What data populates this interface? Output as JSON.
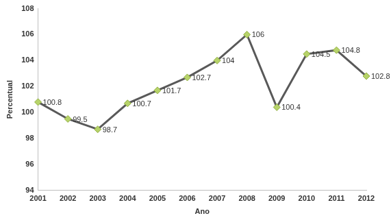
{
  "chart_data": {
    "type": "line",
    "x_label": "Ano",
    "y_label": "Percentual",
    "categories": [
      "2001",
      "2002",
      "2003",
      "2004",
      "2005",
      "2006",
      "2007",
      "2008",
      "2009",
      "2010",
      "2011",
      "2012"
    ],
    "values": [
      100.8,
      99.5,
      98.7,
      100.7,
      101.7,
      102.7,
      104,
      106,
      100.4,
      104.5,
      104.8,
      102.8
    ],
    "color": "#595959",
    "marker": "diamond",
    "line_style": "solid",
    "ylim": [
      94,
      108
    ],
    "yticks": [
      94,
      96,
      98,
      100,
      102,
      104,
      106,
      108
    ],
    "grid": false,
    "data_labels": true
  }
}
